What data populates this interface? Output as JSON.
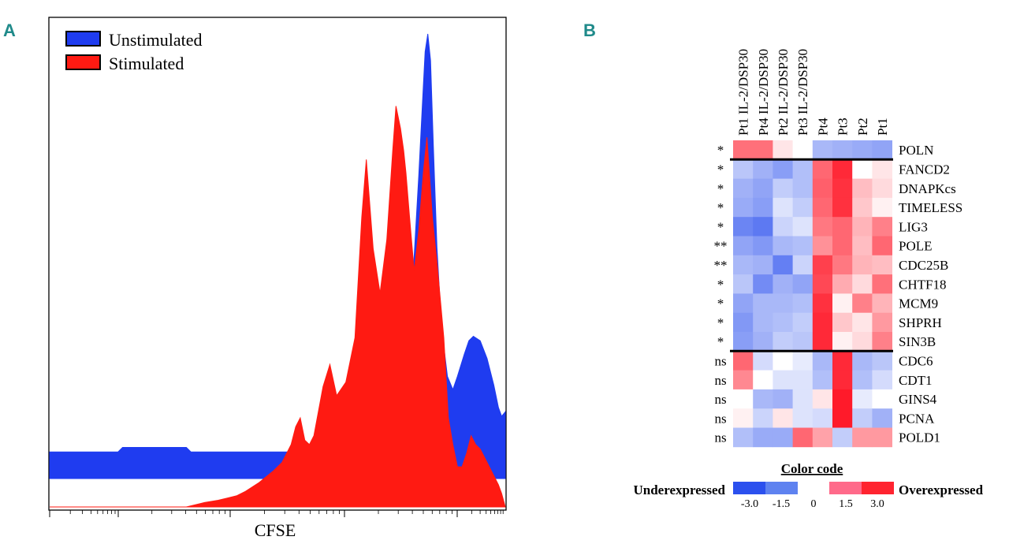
{
  "panels": {
    "a": "A",
    "b": "B"
  },
  "chart_data": [
    {
      "type": "area",
      "panel": "A",
      "xlabel": "CFSE",
      "ylabel": "",
      "x_scale": "log",
      "xlim": [
        0,
        100
      ],
      "ylim": [
        0,
        100
      ],
      "legend": {
        "position": "top-left",
        "entries": [
          "Unstimulated",
          "Stimulated"
        ]
      },
      "series": [
        {
          "name": "Unstimulated",
          "color": "#1f3cf0",
          "points": [
            [
              0,
              6
            ],
            [
              15,
              6
            ],
            [
              16,
              7
            ],
            [
              30,
              7
            ],
            [
              31,
              6
            ],
            [
              55,
              6
            ],
            [
              56,
              7
            ],
            [
              62,
              8
            ],
            [
              68,
              9
            ],
            [
              74,
              12
            ],
            [
              77,
              18
            ],
            [
              79,
              30
            ],
            [
              80,
              50
            ],
            [
              81,
              68
            ],
            [
              81.8,
              84
            ],
            [
              82.4,
              96
            ],
            [
              83,
              100
            ],
            [
              83.6,
              94
            ],
            [
              84.2,
              75
            ],
            [
              85,
              52
            ],
            [
              86,
              34
            ],
            [
              87.3,
              23
            ],
            [
              88.5,
              20
            ],
            [
              89.5,
              23
            ],
            [
              91,
              28
            ],
            [
              92,
              31
            ],
            [
              93,
              32
            ],
            [
              94.5,
              31
            ],
            [
              96,
              27
            ],
            [
              97.5,
              21
            ],
            [
              98.5,
              16
            ],
            [
              99.2,
              14
            ],
            [
              100,
              15
            ],
            [
              100,
              0
            ],
            [
              0,
              0
            ]
          ]
        },
        {
          "name": "Stimulated",
          "color": "#ff1a12",
          "points": [
            [
              0,
              0
            ],
            [
              30,
              0
            ],
            [
              34,
              1
            ],
            [
              37,
              1.5
            ],
            [
              39,
              2
            ],
            [
              41,
              2.5
            ],
            [
              43,
              3.5
            ],
            [
              46,
              5.5
            ],
            [
              49,
              8
            ],
            [
              51,
              10
            ],
            [
              53,
              14
            ],
            [
              54,
              18
            ],
            [
              55,
              20
            ],
            [
              56,
              15
            ],
            [
              57,
              14
            ],
            [
              58,
              16
            ],
            [
              60,
              27
            ],
            [
              61.5,
              32
            ],
            [
              63,
              25
            ],
            [
              65,
              28
            ],
            [
              67,
              38
            ],
            [
              68.5,
              65
            ],
            [
              69.5,
              78
            ],
            [
              71,
              58
            ],
            [
              72.5,
              48
            ],
            [
              74,
              60
            ],
            [
              75.3,
              80
            ],
            [
              76,
              90
            ],
            [
              77,
              85
            ],
            [
              77.7,
              80
            ],
            [
              78.2,
              75
            ],
            [
              79,
              65
            ],
            [
              80,
              53
            ],
            [
              81,
              62
            ],
            [
              82,
              75
            ],
            [
              82.8,
              83
            ],
            [
              84,
              65
            ],
            [
              85,
              55
            ],
            [
              86.5,
              38
            ],
            [
              87.5,
              20
            ],
            [
              88.5,
              14
            ],
            [
              89.5,
              9
            ],
            [
              90.5,
              9
            ],
            [
              91.5,
              12
            ],
            [
              92.5,
              16
            ],
            [
              93.5,
              14
            ],
            [
              94.5,
              13
            ],
            [
              96,
              10
            ],
            [
              97.5,
              7
            ],
            [
              98.5,
              5
            ],
            [
              99.2,
              3
            ],
            [
              100,
              0
            ]
          ]
        }
      ]
    },
    {
      "type": "heatmap",
      "panel": "B",
      "columns": [
        "Pt1 IL-2/DSP30",
        "Pt4 IL-2/DSP30",
        "Pt2 IL-2/DSP30",
        "Pt3 IL-2/DSP30",
        "Pt4",
        "Pt3",
        "Pt2",
        "Pt1"
      ],
      "rows": [
        "POLN",
        "FANCD2",
        "DNAPKcs",
        "TIMELESS",
        "LIG3",
        "POLE",
        "CDC25B",
        "CHTF18",
        "MCM9",
        "SHPRH",
        "SIN3B",
        "CDC6",
        "CDT1",
        "GINS4",
        "PCNA",
        "POLD1"
      ],
      "significance": [
        "*",
        "*",
        "*",
        "*",
        "*",
        "**",
        "**",
        "*",
        "*",
        "*",
        "*",
        "ns",
        "ns",
        "ns",
        "ns",
        "ns"
      ],
      "group_breaks_after_row": [
        0,
        10
      ],
      "values": [
        [
          1.5,
          1.5,
          0.2,
          0.0,
          -0.9,
          -1.0,
          -1.1,
          -1.2
        ],
        [
          -0.7,
          -1.0,
          -1.3,
          -0.8,
          1.6,
          2.4,
          0.0,
          0.2
        ],
        [
          -1.0,
          -1.2,
          -0.6,
          -0.8,
          1.7,
          2.3,
          0.6,
          0.3
        ],
        [
          -1.1,
          -1.3,
          -0.3,
          -0.6,
          1.6,
          2.3,
          0.5,
          0.1
        ],
        [
          -1.7,
          -1.9,
          -0.5,
          -0.3,
          1.4,
          1.6,
          0.7,
          1.3
        ],
        [
          -1.2,
          -1.4,
          -0.9,
          -0.8,
          1.1,
          1.6,
          0.6,
          1.6
        ],
        [
          -0.9,
          -1.0,
          -1.8,
          -0.5,
          2.1,
          1.4,
          0.7,
          0.6
        ],
        [
          -0.7,
          -1.6,
          -1.0,
          -1.2,
          2.0,
          0.8,
          0.3,
          1.5
        ],
        [
          -1.2,
          -0.9,
          -0.9,
          -0.8,
          2.3,
          0.1,
          1.3,
          0.7
        ],
        [
          -1.4,
          -0.9,
          -0.8,
          -0.6,
          2.4,
          0.5,
          0.2,
          1.0
        ],
        [
          -1.3,
          -1.0,
          -0.6,
          -0.7,
          2.4,
          0.1,
          0.3,
          1.3
        ],
        [
          1.6,
          -0.4,
          0.0,
          -0.2,
          -0.9,
          2.4,
          -0.9,
          -0.7
        ],
        [
          1.2,
          0.0,
          -0.3,
          -0.3,
          -0.8,
          2.4,
          -0.8,
          -0.4
        ],
        [
          0.0,
          -0.9,
          -1.0,
          -0.3,
          0.2,
          2.6,
          -0.2,
          0.0
        ],
        [
          0.1,
          -0.5,
          0.2,
          -0.3,
          -0.4,
          2.6,
          -0.6,
          -1.0
        ],
        [
          -0.8,
          -1.1,
          -1.1,
          1.6,
          0.9,
          -0.6,
          1.0,
          1.0
        ]
      ],
      "color_code": {
        "title": "Color code",
        "low_label": "Underexpressed",
        "high_label": "Overexpressed",
        "ticks": [
          "-3.0",
          "-1.5",
          "0",
          "1.5",
          "3.0"
        ],
        "vmin": -3.0,
        "vmax": 3.0,
        "blue": "#2b50ee",
        "red": "#ff1a2a"
      }
    }
  ]
}
